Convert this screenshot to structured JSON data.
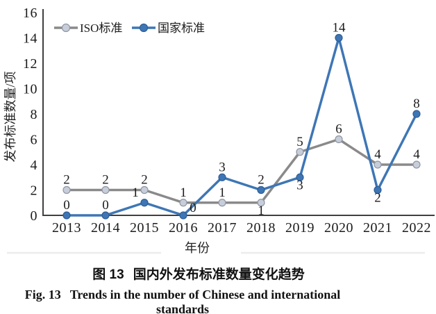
{
  "captions": {
    "cn_prefix": "图 13",
    "cn_text": "国内外发布标准数量变化趋势",
    "en_prefix": "Fig. 13",
    "en_text": "Trends in the number of Chinese and international standards"
  },
  "chart_data": {
    "type": "line",
    "title": "",
    "xlabel": "年份",
    "ylabel": "发布标准数量/项",
    "categories": [
      "2013",
      "2014",
      "2015",
      "2016",
      "2017",
      "2018",
      "2019",
      "2020",
      "2021",
      "2022"
    ],
    "ylim": [
      0,
      16
    ],
    "yticks": [
      0,
      2,
      4,
      6,
      8,
      10,
      12,
      14,
      16
    ],
    "grid": false,
    "legend_position": "top-left",
    "axis_color": "#3f3f3f",
    "series": [
      {
        "name": "ISO标准",
        "color": "#8a8a8a",
        "marker_fill": "#c7ceda",
        "marker_stroke": "#8e96a3",
        "values": [
          2,
          2,
          2,
          1,
          1,
          1,
          5,
          6,
          4,
          4
        ],
        "label_pos": [
          "above",
          "above",
          "above",
          "above",
          "above",
          "below",
          "above",
          "above",
          "above",
          "above"
        ]
      },
      {
        "name": "国家标准",
        "color": "#3e76b5",
        "marker_fill": "#3e76b5",
        "marker_stroke": "#2e5d95",
        "values": [
          0,
          0,
          1,
          0,
          3,
          2,
          3,
          14,
          2,
          8
        ],
        "label_pos": [
          "above",
          "above",
          "above-left",
          "above-right",
          "above",
          "above",
          "below",
          "above",
          "below",
          "above"
        ]
      }
    ]
  }
}
